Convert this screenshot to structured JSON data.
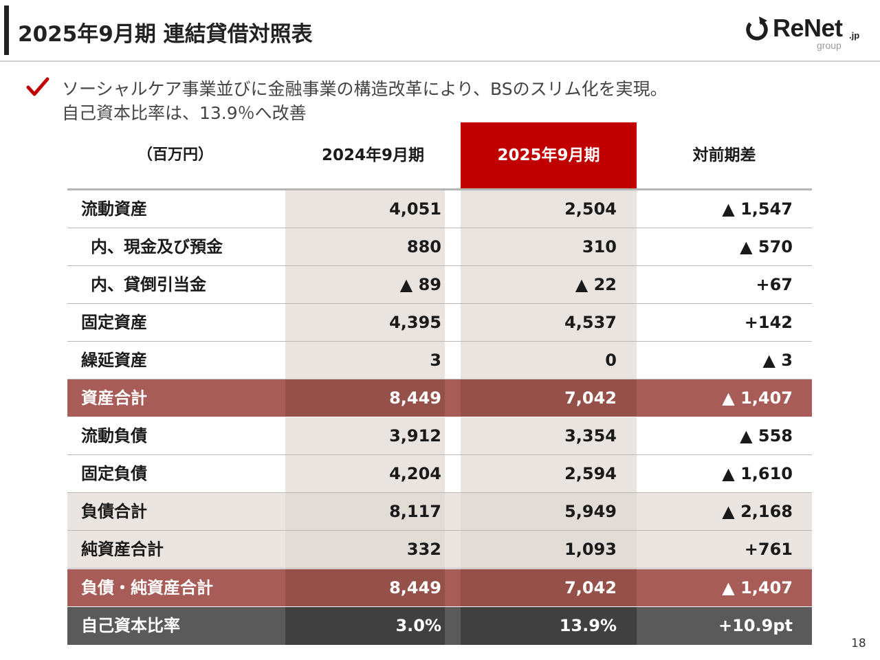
{
  "header": {
    "title": "2025年9月期 連結貸借対照表"
  },
  "logo": {
    "word": "ReNet",
    "suffix": ".jp",
    "sub": "group"
  },
  "summary": {
    "line1": "ソーシャルケア事業並びに金融事業の構造改革により、BSのスリム化を実現。",
    "line2": "自己資本比率は、13.9％へ改善"
  },
  "table": {
    "columns": {
      "unit": "（百万円）",
      "prev": "2024年9月期",
      "curr": "2025年9月期",
      "diff": "対前期差"
    },
    "rows": [
      {
        "label": "流動資産",
        "prev": "4,051",
        "curr": "2,504",
        "diff": "▲ 1,547"
      },
      {
        "label": "内、現金及び預金",
        "prev": "880",
        "curr": "310",
        "diff": "▲ 570"
      },
      {
        "label": "内、貸倒引当金",
        "prev": "▲ 89",
        "curr": "▲ 22",
        "diff": "+67"
      },
      {
        "label": "固定資産",
        "prev": "4,395",
        "curr": "4,537",
        "diff": "+142"
      },
      {
        "label": "繰延資産",
        "prev": "3",
        "curr": "0",
        "diff": "▲ 3"
      },
      {
        "label": "資産合計",
        "prev": "8,449",
        "curr": "7,042",
        "diff": "▲ 1,407"
      },
      {
        "label": "流動負債",
        "prev": "3,912",
        "curr": "3,354",
        "diff": "▲ 558"
      },
      {
        "label": "固定負債",
        "prev": "4,204",
        "curr": "2,594",
        "diff": "▲ 1,610"
      },
      {
        "label": "負債合計",
        "prev": "8,117",
        "curr": "5,949",
        "diff": "▲ 2,168"
      },
      {
        "label": "純資産合計",
        "prev": "332",
        "curr": "1,093",
        "diff": "+761"
      },
      {
        "label": "負債・純資産合計",
        "prev": "8,449",
        "curr": "7,042",
        "diff": "▲ 1,407"
      },
      {
        "label": "自己資本比率",
        "prev": "3.0%",
        "curr": "13.9%",
        "diff": "+10.9pt"
      }
    ]
  },
  "page": {
    "number": "18"
  },
  "colors": {
    "accent": "#c00000",
    "total_row": "#a85c57",
    "ratio_row": "#5a5a5a",
    "column_band": "#e9e4e0"
  }
}
